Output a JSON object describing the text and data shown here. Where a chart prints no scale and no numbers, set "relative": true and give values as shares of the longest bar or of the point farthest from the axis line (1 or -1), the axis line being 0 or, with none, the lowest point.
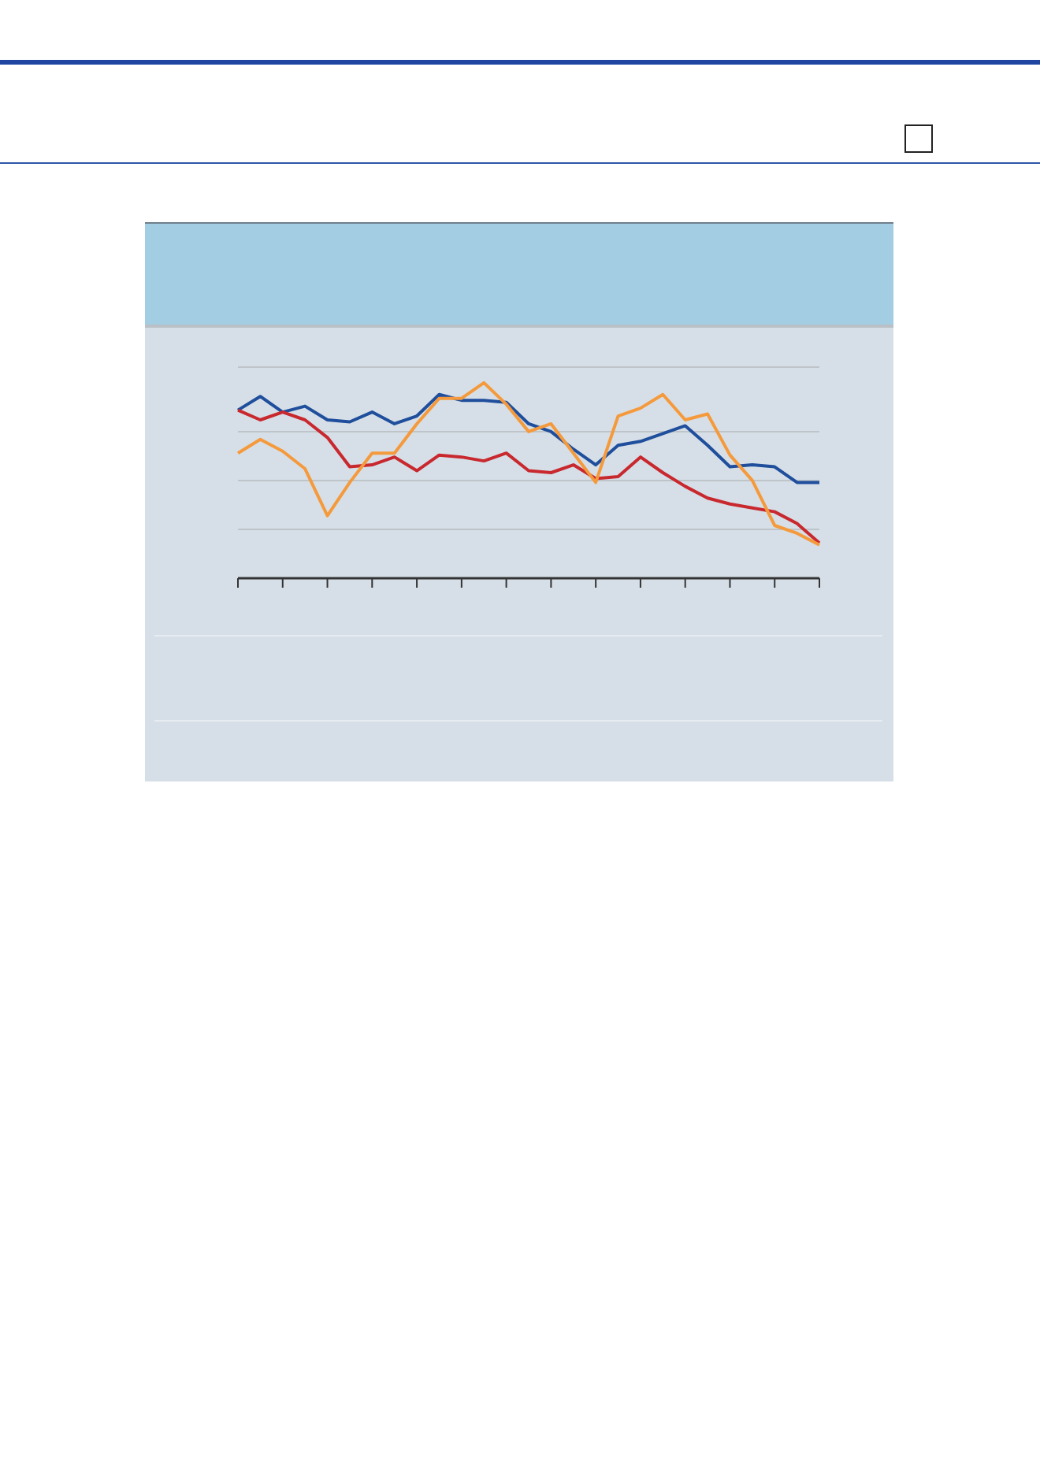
{
  "chart_data": {
    "type": "line",
    "relative": true,
    "grid": "y",
    "marker": "none",
    "line_style": "solid",
    "categories": [
      null,
      null,
      null,
      null,
      null,
      null,
      null,
      null,
      null,
      null,
      null,
      null,
      null,
      null,
      null,
      null,
      null,
      null,
      null,
      null,
      null,
      null,
      null,
      null,
      null,
      null,
      null
    ],
    "series": [
      {
        "color": "#1f4e9c",
        "values": [
          0.86,
          0.93,
          0.85,
          0.88,
          0.81,
          0.8,
          0.85,
          0.79,
          0.83,
          0.94,
          0.91,
          0.91,
          0.9,
          0.79,
          0.75,
          0.66,
          0.58,
          0.68,
          0.7,
          0.74,
          0.78,
          0.68,
          0.57,
          0.58,
          0.57,
          0.49,
          0.49
        ]
      },
      {
        "color": "#c8282e",
        "values": [
          0.86,
          0.81,
          0.85,
          0.81,
          0.72,
          0.57,
          0.58,
          0.62,
          0.55,
          0.63,
          0.62,
          0.6,
          0.64,
          0.55,
          0.54,
          0.58,
          0.51,
          0.52,
          0.62,
          0.54,
          0.47,
          0.41,
          0.38,
          0.36,
          0.34,
          0.28,
          0.18
        ]
      },
      {
        "color": "#f59a3c",
        "values": [
          0.64,
          0.71,
          0.65,
          0.56,
          0.32,
          0.49,
          0.64,
          0.64,
          0.79,
          0.92,
          0.92,
          1,
          0.89,
          0.75,
          0.79,
          0.64,
          0.49,
          0.83,
          0.87,
          0.94,
          0.81,
          0.84,
          0.63,
          0.5,
          0.27,
          0.23,
          0.17
        ]
      }
    ]
  }
}
